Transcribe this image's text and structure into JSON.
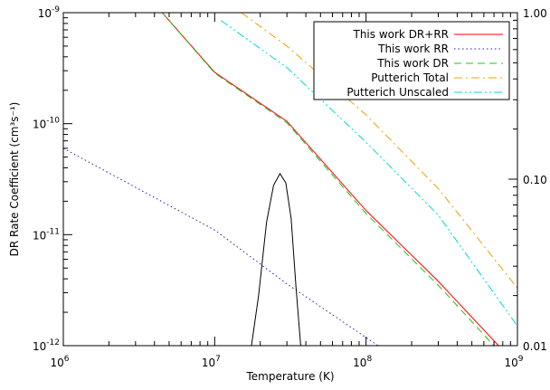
{
  "chart_data": {
    "type": "line",
    "xlabel": "Temperature (K)",
    "ylabel": "DR Rate Coefficient (cm³s⁻¹)",
    "x_scale": "log",
    "y_scale": "log",
    "xlim": [
      1000000,
      1000000000
    ],
    "ylim": [
      1e-12,
      1e-09
    ],
    "x_ticks": [
      {
        "value": 1000000,
        "base": "10",
        "exp": "6"
      },
      {
        "value": 10000000,
        "base": "10",
        "exp": "7"
      },
      {
        "value": 100000000,
        "base": "10",
        "exp": "8"
      },
      {
        "value": 1000000000,
        "base": "10",
        "exp": "9"
      }
    ],
    "y_ticks": [
      {
        "value": 1e-12,
        "base": "10",
        "exp": "-12"
      },
      {
        "value": 1e-11,
        "base": "10",
        "exp": "-11"
      },
      {
        "value": 1e-10,
        "base": "10",
        "exp": "-10"
      },
      {
        "value": 1e-09,
        "base": "10",
        "exp": "-9"
      }
    ],
    "y2_scale": "log",
    "y2lim": [
      0.01,
      1.0
    ],
    "y2_ticks": [
      {
        "value": 0.01,
        "label": "0.01"
      },
      {
        "value": 0.1,
        "label": "0.10"
      },
      {
        "value": 1.0,
        "label": "1.00"
      }
    ],
    "legend_position": "top-right",
    "series": [
      {
        "name": "This work DR+RR",
        "color": "#ff0000",
        "dash": "solid",
        "x": [
          4500000,
          10000000,
          30000000,
          100000000,
          300000000,
          750000000
        ],
        "y": [
          1e-09,
          2.9e-10,
          1.05e-10,
          1.65e-11,
          3.8e-12,
          1e-12
        ]
      },
      {
        "name": "This work RR",
        "color": "#2020b0",
        "dash": "dot",
        "x": [
          1000000,
          10000000,
          30000000,
          120000000
        ],
        "y": [
          6e-11,
          1.1e-11,
          3.6e-12,
          1e-12
        ]
      },
      {
        "name": "This work DR",
        "color": "#22c022",
        "dash": "dash",
        "x": [
          4500000,
          10000000,
          30000000,
          100000000,
          300000000,
          700000000
        ],
        "y": [
          1e-09,
          2.85e-10,
          1.02e-10,
          1.55e-11,
          3.5e-12,
          1e-12
        ]
      },
      {
        "name": "Putterich Total",
        "color": "#f0a000",
        "dash": "dashdot",
        "x": [
          15000000,
          30000000,
          100000000,
          300000000,
          1000000000
        ],
        "y": [
          1e-09,
          5e-10,
          1.2e-10,
          2.6e-11,
          3.3e-12
        ]
      },
      {
        "name": "Putterich Unscaled",
        "color": "#00d8d8",
        "dash": "dashdotdot",
        "x": [
          11000000,
          30000000,
          100000000,
          300000000,
          1000000000
        ],
        "y": [
          8.5e-10,
          3.2e-10,
          6.8e-11,
          1.5e-11,
          1.5e-12
        ]
      }
    ],
    "curve_y2": {
      "color": "#000000",
      "dash": "solid",
      "axis": "right",
      "x": [
        17500000,
        19500000,
        22000000,
        24500000,
        27000000,
        29500000,
        32000000,
        34500000,
        37000000
      ],
      "y": [
        0.01,
        0.02,
        0.055,
        0.092,
        0.108,
        0.095,
        0.058,
        0.022,
        0.01
      ]
    }
  }
}
